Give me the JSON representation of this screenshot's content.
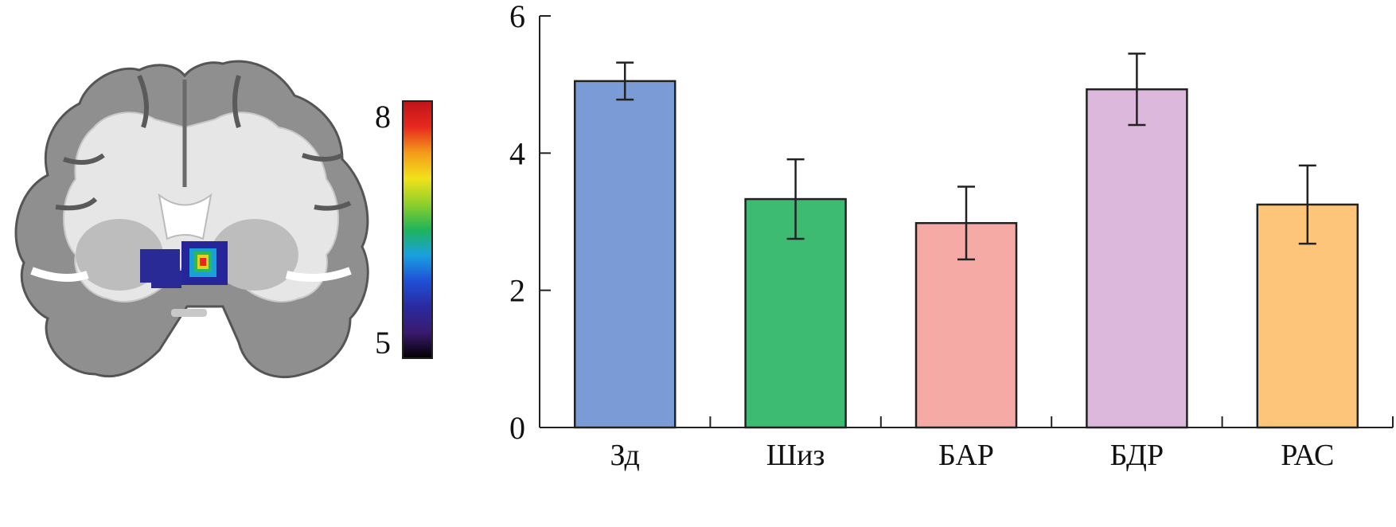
{
  "brain_image": {
    "colorbar": {
      "max_label": "8",
      "min_label": "5",
      "gradient": [
        "#000000",
        "#3a1a6e",
        "#2a2aa0",
        "#1f4fd6",
        "#1aa0e0",
        "#1fb45a",
        "#8fcf2a",
        "#f2e21a",
        "#f39a1a",
        "#e8281e",
        "#c0141a"
      ]
    }
  },
  "chart_data": {
    "type": "bar",
    "categories": [
      "Зд",
      "Шиз",
      "БАР",
      "БДР",
      "РАС"
    ],
    "values": [
      5.05,
      3.33,
      2.98,
      4.93,
      3.25
    ],
    "errors": [
      0.27,
      0.58,
      0.53,
      0.52,
      0.57
    ],
    "colors": [
      "#7b9bd6",
      "#3dbb72",
      "#f5aaa6",
      "#dbb8dc",
      "#fcc57a"
    ],
    "ylim": [
      0,
      6
    ],
    "yticks": [
      "0",
      "2",
      "4",
      "6"
    ],
    "title": "",
    "xlabel": "",
    "ylabel": ""
  }
}
